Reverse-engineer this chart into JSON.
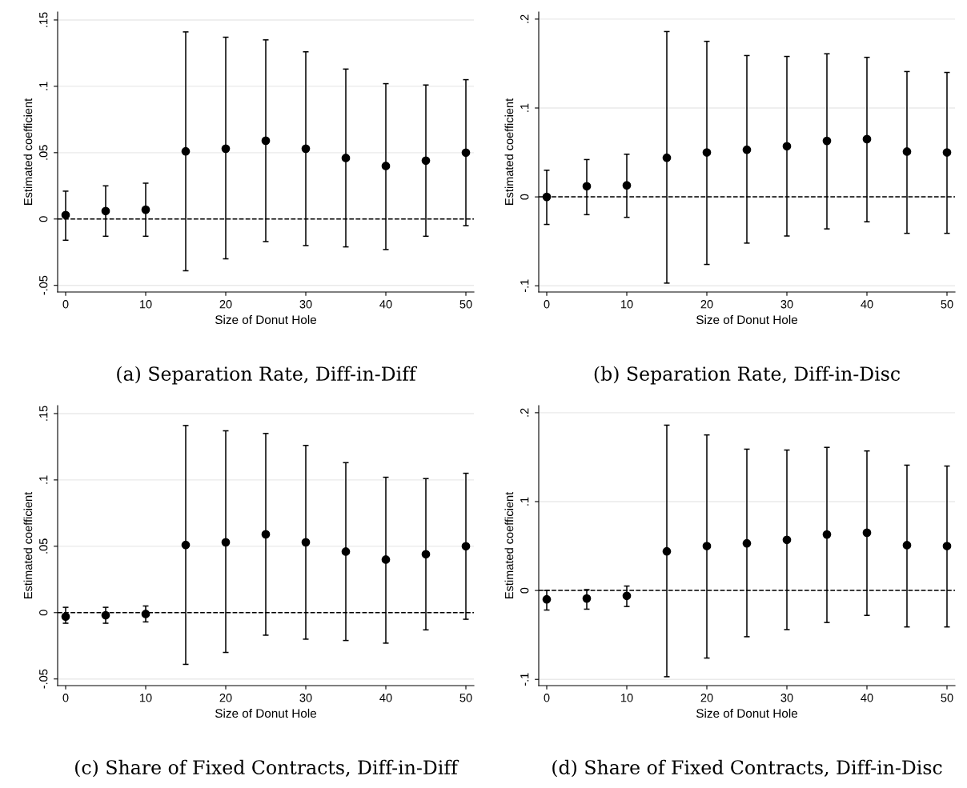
{
  "chart_data": [
    {
      "type": "scatter",
      "title": "(a) Separation Rate, Diff-in-Diff",
      "xlabel": "Size of Donut Hole",
      "ylabel": "Estimated coefficient",
      "x": [
        0,
        5,
        10,
        15,
        20,
        25,
        30,
        35,
        40,
        45,
        50
      ],
      "values": [
        0.003,
        0.006,
        0.007,
        0.051,
        0.053,
        0.059,
        0.053,
        0.046,
        0.04,
        0.044,
        0.05
      ],
      "errors": [
        [
          -0.016,
          0.021
        ],
        [
          -0.013,
          0.025
        ],
        [
          -0.013,
          0.027
        ],
        [
          -0.039,
          0.141
        ],
        [
          -0.03,
          0.137
        ],
        [
          -0.017,
          0.135
        ],
        [
          -0.02,
          0.126
        ],
        [
          -0.021,
          0.113
        ],
        [
          -0.023,
          0.102
        ],
        [
          -0.013,
          0.101
        ],
        [
          -0.005,
          0.105
        ]
      ],
      "color": "#000000",
      "marker": "circle",
      "grid": "y",
      "xlim": [
        -1,
        51
      ],
      "xticks": [
        0,
        10,
        20,
        30,
        40,
        50
      ],
      "ylim": [
        -0.055,
        0.156
      ],
      "yticks": [
        {
          "value": -0.05,
          "label": "-.05"
        },
        0,
        {
          "value": 0.05,
          "label": ".05"
        },
        {
          "value": 0.1,
          "label": ".1"
        },
        {
          "value": 0.15,
          "label": ".15"
        }
      ],
      "ref_lines": [
        {
          "axis": "y",
          "value": 0,
          "line_style": "dashed",
          "color": "#000000"
        }
      ]
    },
    {
      "type": "scatter",
      "title": "(b) Separation Rate, Diff-in-Disc",
      "xlabel": "Size of Donut Hole",
      "ylabel": "Estimated coefficient",
      "x": [
        0,
        5,
        10,
        15,
        20,
        25,
        30,
        35,
        40,
        45,
        50
      ],
      "values": [
        0.0,
        0.012,
        0.013,
        0.044,
        0.05,
        0.053,
        0.057,
        0.063,
        0.065,
        0.051,
        0.05
      ],
      "errors": [
        [
          -0.031,
          0.03
        ],
        [
          -0.02,
          0.042
        ],
        [
          -0.023,
          0.048
        ],
        [
          -0.097,
          0.186
        ],
        [
          -0.076,
          0.175
        ],
        [
          -0.052,
          0.159
        ],
        [
          -0.044,
          0.158
        ],
        [
          -0.036,
          0.161
        ],
        [
          -0.028,
          0.157
        ],
        [
          -0.041,
          0.141
        ],
        [
          -0.041,
          0.14
        ]
      ],
      "color": "#000000",
      "marker": "circle",
      "grid": "y",
      "xlim": [
        -1,
        51
      ],
      "xticks": [
        0,
        10,
        20,
        30,
        40,
        50
      ],
      "ylim": [
        -0.107,
        0.208
      ],
      "yticks": [
        {
          "value": -0.1,
          "label": "-.1"
        },
        0,
        {
          "value": 0.1,
          "label": ".1"
        },
        {
          "value": 0.2,
          "label": ".2"
        }
      ],
      "ref_lines": [
        {
          "axis": "y",
          "value": 0,
          "line_style": "dashed",
          "color": "#000000"
        }
      ]
    },
    {
      "type": "scatter",
      "title": "(c) Share of Fixed Contracts, Diff-in-Diff",
      "xlabel": "Size of Donut Hole",
      "ylabel": "Estimated coefficient",
      "x": [
        0,
        5,
        10,
        15,
        20,
        25,
        30,
        35,
        40,
        45,
        50
      ],
      "values": [
        -0.003,
        -0.002,
        -0.001,
        0.051,
        0.053,
        0.059,
        0.053,
        0.046,
        0.04,
        0.044,
        0.05
      ],
      "errors": [
        [
          -0.008,
          0.004
        ],
        [
          -0.008,
          0.004
        ],
        [
          -0.007,
          0.005
        ],
        [
          -0.039,
          0.141
        ],
        [
          -0.03,
          0.137
        ],
        [
          -0.017,
          0.135
        ],
        [
          -0.02,
          0.126
        ],
        [
          -0.021,
          0.113
        ],
        [
          -0.023,
          0.102
        ],
        [
          -0.013,
          0.101
        ],
        [
          -0.005,
          0.105
        ]
      ],
      "color": "#000000",
      "marker": "circle",
      "grid": "y",
      "xlim": [
        -1,
        51
      ],
      "xticks": [
        0,
        10,
        20,
        30,
        40,
        50
      ],
      "ylim": [
        -0.055,
        0.156
      ],
      "yticks": [
        {
          "value": -0.05,
          "label": "-.05"
        },
        0,
        {
          "value": 0.05,
          "label": ".05"
        },
        {
          "value": 0.1,
          "label": ".1"
        },
        {
          "value": 0.15,
          "label": ".15"
        }
      ],
      "ref_lines": [
        {
          "axis": "y",
          "value": 0,
          "line_style": "dashed",
          "color": "#000000"
        }
      ]
    },
    {
      "type": "scatter",
      "title": "(d) Share of Fixed Contracts, Diff-in-Disc",
      "xlabel": "Size of Donut Hole",
      "ylabel": "Estimated coefficient",
      "x": [
        0,
        5,
        10,
        15,
        20,
        25,
        30,
        35,
        40,
        45,
        50
      ],
      "values": [
        -0.01,
        -0.009,
        -0.006,
        0.044,
        0.05,
        0.053,
        0.057,
        0.063,
        0.065,
        0.051,
        0.05
      ],
      "errors": [
        [
          -0.022,
          0.0
        ],
        [
          -0.021,
          0.001
        ],
        [
          -0.018,
          0.005
        ],
        [
          -0.097,
          0.186
        ],
        [
          -0.076,
          0.175
        ],
        [
          -0.052,
          0.159
        ],
        [
          -0.044,
          0.158
        ],
        [
          -0.036,
          0.161
        ],
        [
          -0.028,
          0.157
        ],
        [
          -0.041,
          0.141
        ],
        [
          -0.041,
          0.14
        ]
      ],
      "color": "#000000",
      "marker": "circle",
      "grid": "y",
      "xlim": [
        -1,
        51
      ],
      "xticks": [
        0,
        10,
        20,
        30,
        40,
        50
      ],
      "ylim": [
        -0.107,
        0.208
      ],
      "yticks": [
        {
          "value": -0.1,
          "label": "-.1"
        },
        0,
        {
          "value": 0.1,
          "label": ".1"
        },
        {
          "value": 0.2,
          "label": ".2"
        }
      ],
      "ref_lines": [
        {
          "axis": "y",
          "value": 0,
          "line_style": "dashed",
          "color": "#000000"
        }
      ]
    }
  ]
}
